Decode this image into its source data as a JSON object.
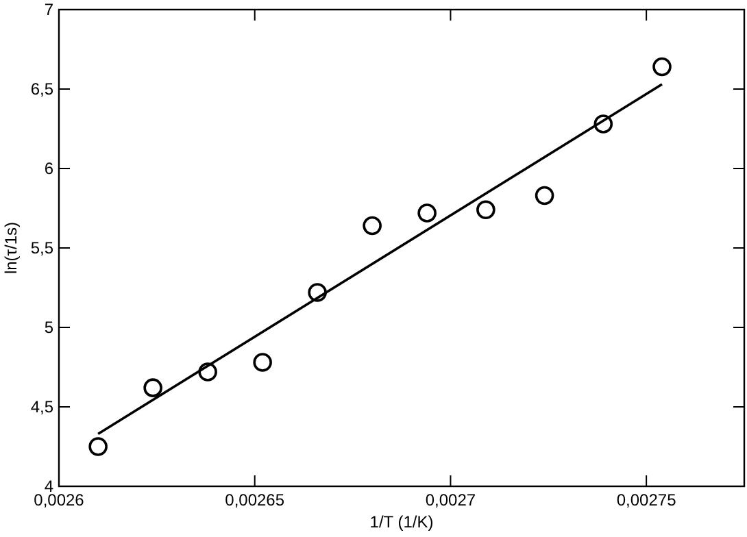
{
  "chart_data": {
    "type": "scatter",
    "xlabel": "1/T (1/K)",
    "ylabel": "ln(τ/1s)",
    "xlim": [
      0.0026,
      0.002775
    ],
    "xticks": [
      {
        "value": 0.0026,
        "label": "0,0026"
      },
      {
        "value": 0.00265,
        "label": "0,00265"
      },
      {
        "value": 0.0027,
        "label": "0,0027"
      },
      {
        "value": 0.00275,
        "label": "0,00275"
      }
    ],
    "ylim": [
      4,
      7
    ],
    "yticks": [
      {
        "value": 4,
        "label": "4"
      },
      {
        "value": 4.5,
        "label": "4,5"
      },
      {
        "value": 5,
        "label": "5"
      },
      {
        "value": 5.5,
        "label": "5,5"
      },
      {
        "value": 6,
        "label": "6"
      },
      {
        "value": 6.5,
        "label": "6,5"
      },
      {
        "value": 7,
        "label": "7"
      }
    ],
    "grid": false,
    "series": [
      {
        "marker": "circle",
        "color": "#000000",
        "x": [
          0.00261,
          0.002624,
          0.002638,
          0.002652,
          0.002666,
          0.00268,
          0.002694,
          0.002709,
          0.002724,
          0.002739,
          0.002754
        ],
        "values": [
          4.25,
          4.62,
          4.72,
          4.78,
          5.22,
          5.64,
          5.72,
          5.74,
          5.83,
          6.28,
          6.64
        ]
      },
      {
        "type": "line",
        "color": "#000000",
        "x": [
          0.00261,
          0.002754
        ],
        "values": [
          4.33,
          6.53
        ]
      }
    ]
  }
}
